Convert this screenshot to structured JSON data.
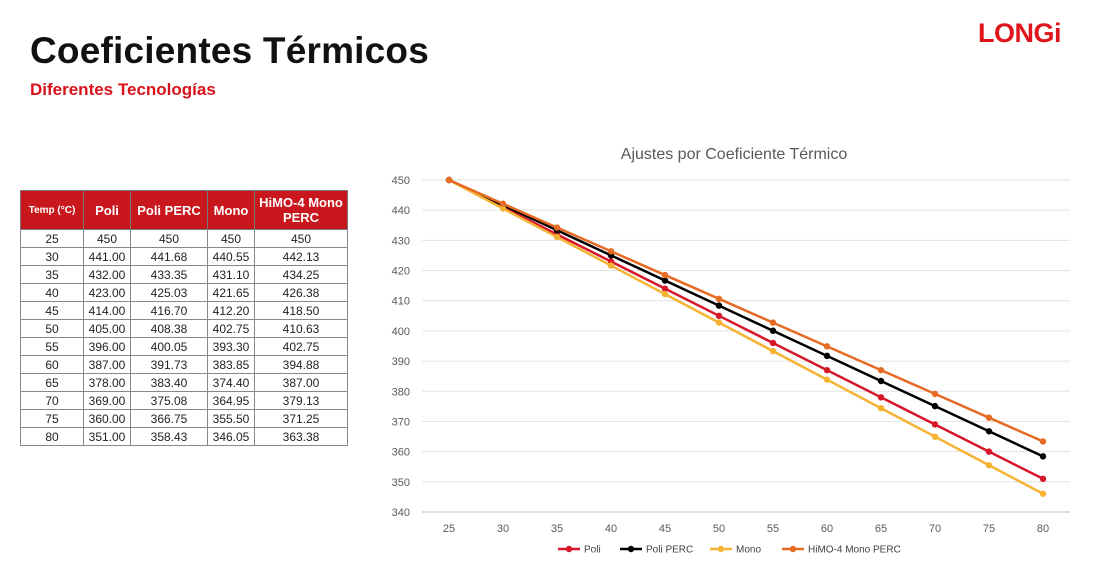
{
  "slide": {
    "title": "Coeficientes Térmicos",
    "subtitle": "Diferentes Tecnologías",
    "logo": "LONGi"
  },
  "colors": {
    "brand_red": "#d8121b",
    "table_header": "#c8171d",
    "poli": "#d6172a",
    "poli_perc": "#000000",
    "mono": "#f5b333",
    "himo": "#e56b24"
  },
  "table": {
    "headers": [
      "Temp (°C)",
      "Poli",
      "Poli PERC",
      "Mono",
      "HiMO-4 Mono PERC"
    ],
    "rows": [
      [
        "25",
        "450",
        "450",
        "450",
        "450"
      ],
      [
        "30",
        "441.00",
        "441.68",
        "440.55",
        "442.13"
      ],
      [
        "35",
        "432.00",
        "433.35",
        "431.10",
        "434.25"
      ],
      [
        "40",
        "423.00",
        "425.03",
        "421.65",
        "426.38"
      ],
      [
        "45",
        "414.00",
        "416.70",
        "412.20",
        "418.50"
      ],
      [
        "50",
        "405.00",
        "408.38",
        "402.75",
        "410.63"
      ],
      [
        "55",
        "396.00",
        "400.05",
        "393.30",
        "402.75"
      ],
      [
        "60",
        "387.00",
        "391.73",
        "383.85",
        "394.88"
      ],
      [
        "65",
        "378.00",
        "383.40",
        "374.40",
        "387.00"
      ],
      [
        "70",
        "369.00",
        "375.08",
        "364.95",
        "379.13"
      ],
      [
        "75",
        "360.00",
        "366.75",
        "355.50",
        "371.25"
      ],
      [
        "80",
        "351.00",
        "358.43",
        "346.05",
        "363.38"
      ]
    ]
  },
  "chart_data": {
    "type": "line",
    "title": "Ajustes por Coeficiente Térmico",
    "xlabel": "",
    "ylabel": "",
    "x": [
      25,
      30,
      35,
      40,
      45,
      50,
      55,
      60,
      65,
      70,
      75,
      80
    ],
    "ylim": [
      340,
      450
    ],
    "yticks": [
      340,
      350,
      360,
      370,
      380,
      390,
      400,
      410,
      420,
      430,
      440,
      450
    ],
    "grid": true,
    "legend": "bottom",
    "series": [
      {
        "name": "Poli",
        "color": "#d6172a",
        "values": [
          450,
          441.0,
          432.0,
          423.0,
          414.0,
          405.0,
          396.0,
          387.0,
          378.0,
          369.0,
          360.0,
          351.0
        ]
      },
      {
        "name": "Poli PERC",
        "color": "#000000",
        "values": [
          450,
          441.68,
          433.35,
          425.03,
          416.7,
          408.38,
          400.05,
          391.73,
          383.4,
          375.08,
          366.75,
          358.43
        ]
      },
      {
        "name": "Mono",
        "color": "#f5b333",
        "values": [
          450,
          440.55,
          431.1,
          421.65,
          412.2,
          402.75,
          393.3,
          383.85,
          374.4,
          364.95,
          355.5,
          346.05
        ]
      },
      {
        "name": "HiMO-4 Mono PERC",
        "color": "#e56b24",
        "values": [
          450,
          442.13,
          434.25,
          426.38,
          418.5,
          410.63,
          402.75,
          394.88,
          387.0,
          379.13,
          371.25,
          363.38
        ]
      }
    ]
  }
}
